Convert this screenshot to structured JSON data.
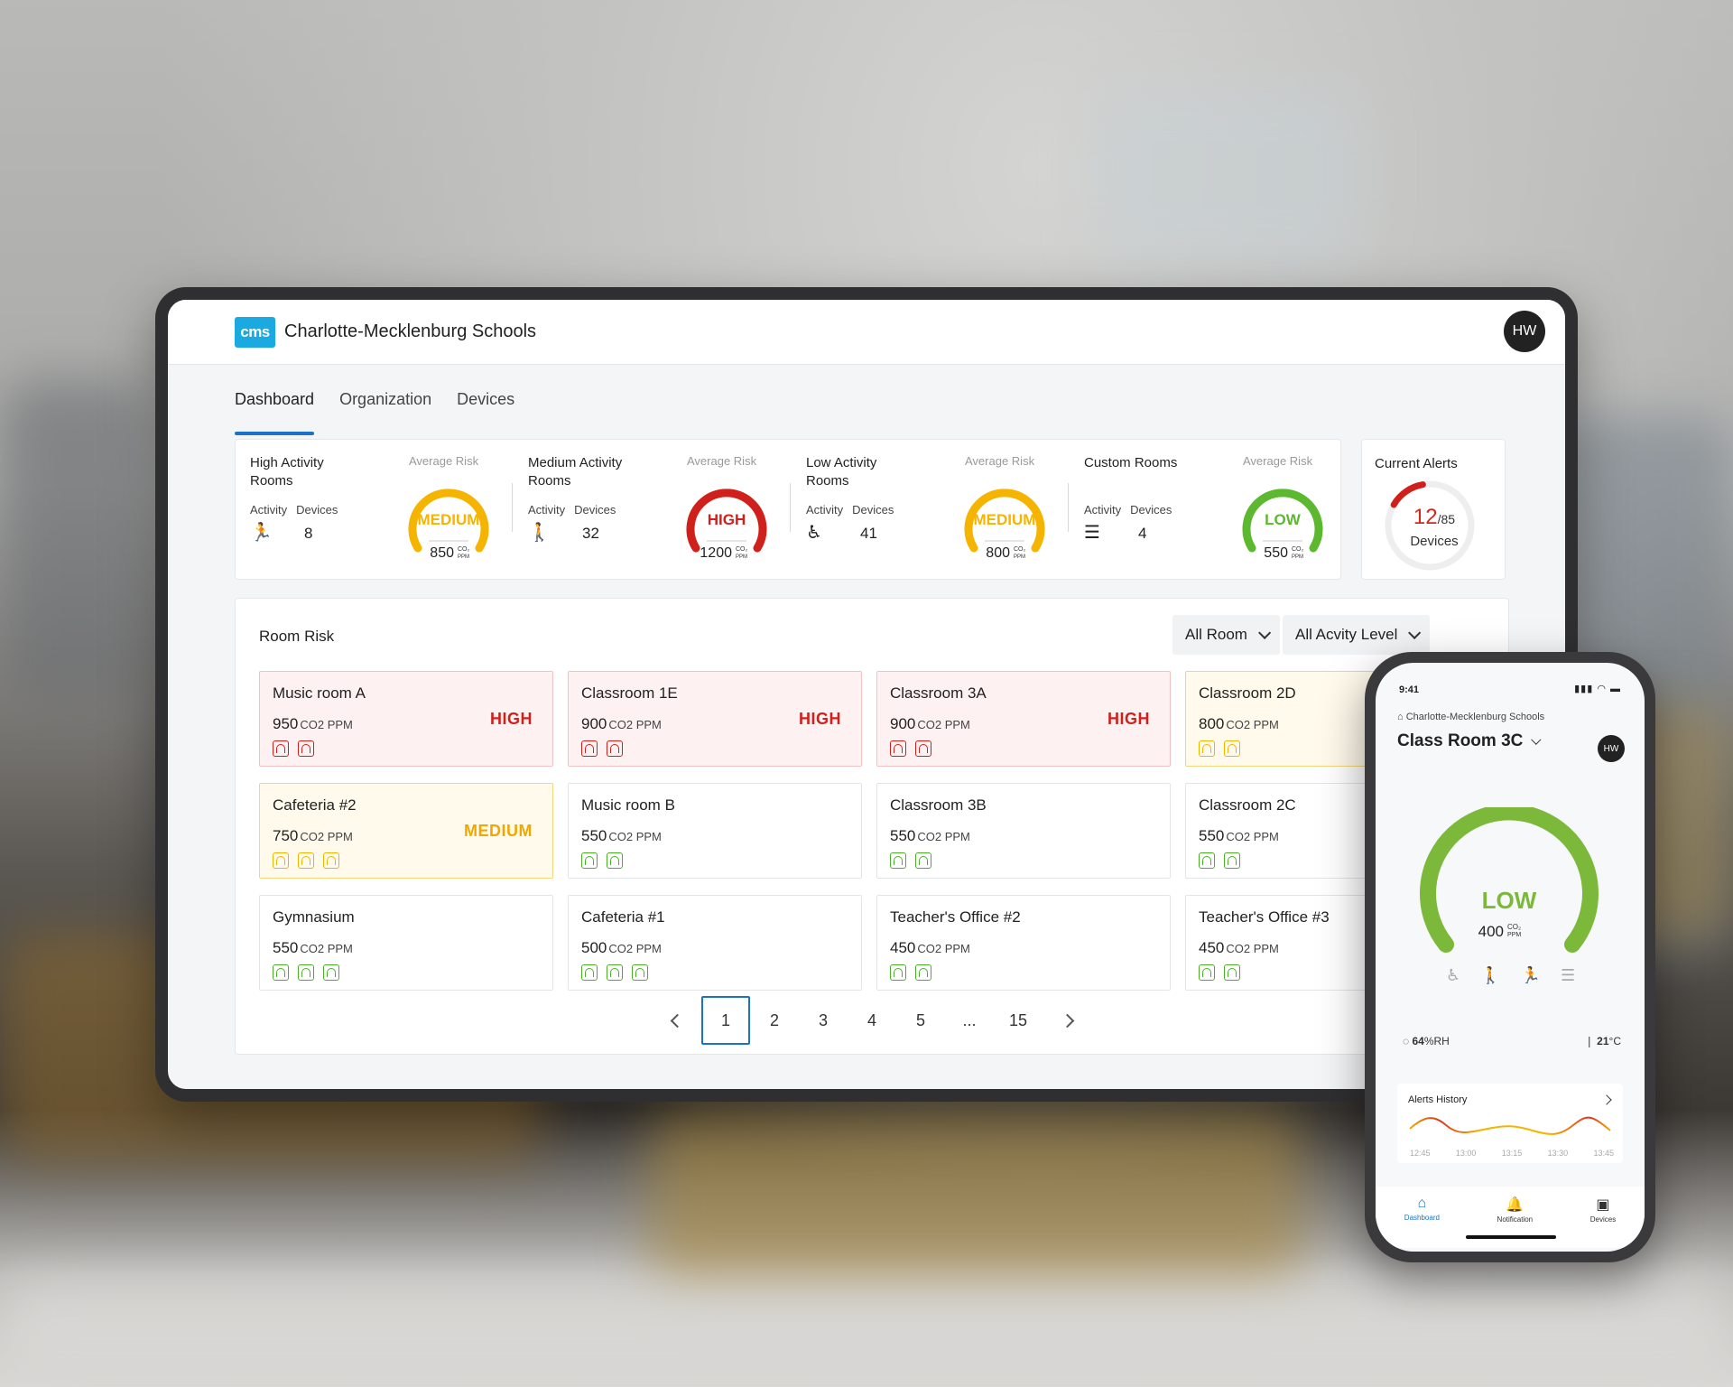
{
  "header": {
    "logo": "cms",
    "org_name": "Charlotte-Mecklenburg Schools",
    "avatar": "HW"
  },
  "tabs": [
    {
      "label": "Dashboard",
      "active": true
    },
    {
      "label": "Organization",
      "active": false
    },
    {
      "label": "Devices",
      "active": false
    }
  ],
  "summary": [
    {
      "title": "High Activity Rooms",
      "activity_label": "Activity",
      "devices_label": "Devices",
      "icon": "running-icon",
      "devices": "8",
      "avg_label": "Average Risk",
      "risk": "MEDIUM",
      "value": "850",
      "risk_color": "#f5b400"
    },
    {
      "title": "Medium Activity Rooms",
      "activity_label": "Activity",
      "devices_label": "Devices",
      "icon": "standing-icon",
      "devices": "32",
      "avg_label": "Average Risk",
      "risk": "HIGH",
      "value": "1200",
      "risk_color": "#d0201c"
    },
    {
      "title": "Low Activity Rooms",
      "activity_label": "Activity",
      "devices_label": "Devices",
      "icon": "seated-icon",
      "devices": "41",
      "avg_label": "Average Risk",
      "risk": "MEDIUM",
      "value": "800",
      "risk_color": "#f5b400"
    },
    {
      "title": "Custom Rooms",
      "activity_label": "Activity",
      "devices_label": "Devices",
      "icon": "sliders-icon",
      "devices": "4",
      "avg_label": "Average Risk",
      "risk": "LOW",
      "value": "550",
      "risk_color": "#5cb82e"
    }
  ],
  "co2_unit_top": "CO₂",
  "co2_unit_bottom": "PPM",
  "alerts": {
    "title": "Current Alerts",
    "count": "12",
    "total": "/85",
    "label": "Devices",
    "fraction": 0.14
  },
  "room_risk": {
    "title": "Room Risk",
    "filter_room": "All Room",
    "filter_activity": "All Acvity Level",
    "unit": "CO2 PPM",
    "rooms": [
      {
        "name": "Music room A",
        "value": "950",
        "risk": "HIGH",
        "level": "high",
        "devices": 2
      },
      {
        "name": "Classroom 1E",
        "value": "900",
        "risk": "HIGH",
        "level": "high",
        "devices": 2
      },
      {
        "name": "Classroom 3A",
        "value": "900",
        "risk": "HIGH",
        "level": "high",
        "devices": 2
      },
      {
        "name": "Classroom 2D",
        "value": "800",
        "risk": "",
        "level": "medium",
        "devices": 2
      },
      {
        "name": "Cafeteria #2",
        "value": "750",
        "risk": "MEDIUM",
        "level": "medium",
        "devices": 3
      },
      {
        "name": "Music room B",
        "value": "550",
        "risk": "",
        "level": "low",
        "devices": 2
      },
      {
        "name": "Classroom 3B",
        "value": "550",
        "risk": "",
        "level": "low",
        "devices": 2
      },
      {
        "name": "Classroom 2C",
        "value": "550",
        "risk": "",
        "level": "low",
        "devices": 2
      },
      {
        "name": "Gymnasium",
        "value": "550",
        "risk": "",
        "level": "low",
        "devices": 3
      },
      {
        "name": "Cafeteria #1",
        "value": "500",
        "risk": "",
        "level": "low",
        "devices": 3
      },
      {
        "name": "Teacher's Office #2",
        "value": "450",
        "risk": "",
        "level": "low",
        "devices": 2
      },
      {
        "name": "Teacher's Office #3",
        "value": "450",
        "risk": "",
        "level": "low",
        "devices": 2
      }
    ]
  },
  "pagination": {
    "pages": [
      "1",
      "2",
      "3",
      "4",
      "5",
      "...",
      "15"
    ],
    "current": "1"
  },
  "phone": {
    "time": "9:41",
    "status_icons": "▮▮▮ ◠ ▬",
    "org": "Charlotte-Mecklenburg Schools",
    "room": "Class Room 3C",
    "avatar": "HW",
    "risk": "LOW",
    "value": "400",
    "unit_top": "CO₂",
    "unit_bottom": "PPM",
    "gauge_color": "#7cb93a",
    "humidity": "64",
    "humidity_unit": "%RH",
    "temperature": "21",
    "temperature_unit": "°C",
    "alerts_title": "Alerts History",
    "times": [
      "12:45",
      "13:00",
      "13:15",
      "13:30",
      "13:45"
    ],
    "nav": [
      {
        "label": "Dashboard",
        "icon": "home-icon",
        "active": true
      },
      {
        "label": "Notification",
        "icon": "bell-icon",
        "active": false
      },
      {
        "label": "Devices",
        "icon": "device-icon",
        "active": false
      }
    ]
  }
}
